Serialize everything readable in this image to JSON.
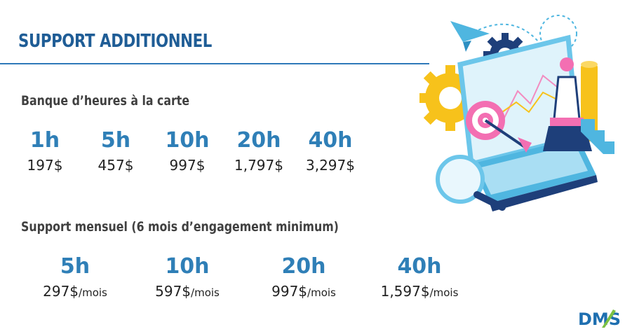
{
  "title": "SUPPORT ADDITIONNEL",
  "section1": {
    "heading": "Banque d’heures à la carte",
    "items": [
      {
        "hours": "1h",
        "price": "197$"
      },
      {
        "hours": "5h",
        "price": "457$"
      },
      {
        "hours": "10h",
        "price": "997$"
      },
      {
        "hours": "20h",
        "price": "1,797$"
      },
      {
        "hours": "40h",
        "price": "3,297$"
      }
    ]
  },
  "section2": {
    "heading": "Support mensuel (6 mois d’engagement minimum)",
    "unit": "/mois",
    "items": [
      {
        "hours": "5h",
        "price": "297$"
      },
      {
        "hours": "10h",
        "price": "597$"
      },
      {
        "hours": "20h",
        "price": "997$"
      },
      {
        "hours": "40h",
        "price": "1,597$"
      }
    ]
  },
  "logo": {
    "text": "DMS"
  },
  "colors": {
    "title": "#1f5d96",
    "accent": "#2f7fb7",
    "heading": "#404040"
  }
}
